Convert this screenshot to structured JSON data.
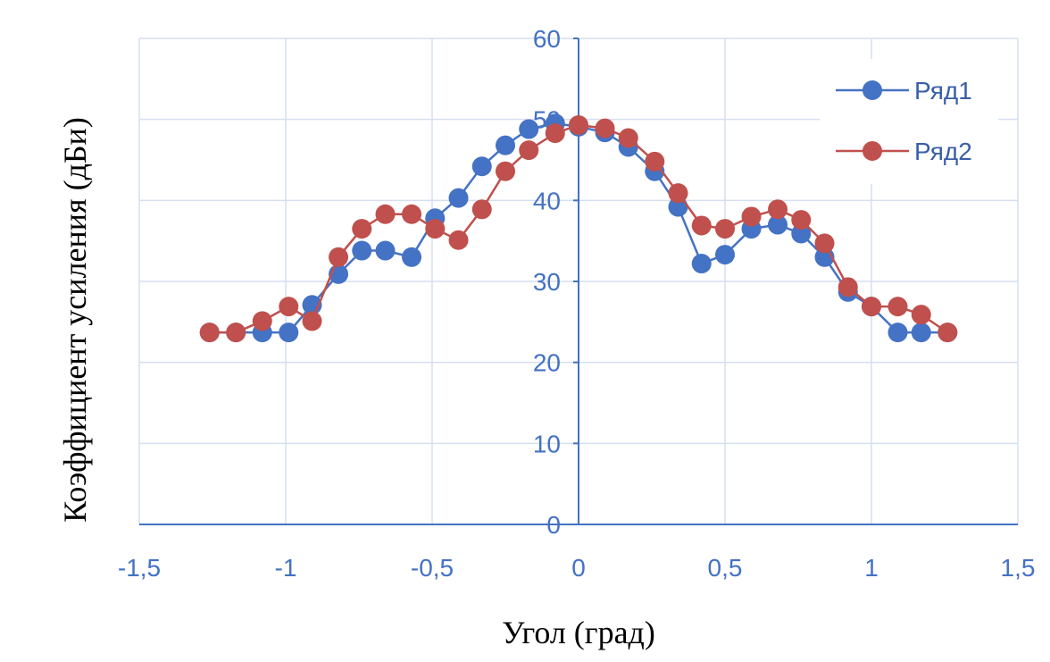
{
  "chart_data": {
    "type": "line",
    "title": "",
    "xlabel": "Угол (град)",
    "ylabel": "Коэффициент  усиления  (дБи)",
    "xlim": [
      -1.5,
      1.5
    ],
    "ylim": [
      0,
      60
    ],
    "x_ticks": [
      "-1,5",
      "-1",
      "-0,5",
      "0",
      "0,5",
      "1",
      "1,5"
    ],
    "y_ticks": [
      "0",
      "10",
      "20",
      "30",
      "40",
      "50",
      "60"
    ],
    "grid": true,
    "legend_position": "top-right",
    "series": [
      {
        "name": "Ряд1",
        "color": "#4472c4",
        "x": [
          -1.26,
          -1.17,
          -1.08,
          -0.99,
          -0.91,
          -0.82,
          -0.74,
          -0.66,
          -0.57,
          -0.49,
          -0.41,
          -0.33,
          -0.25,
          -0.17,
          -0.08,
          0.0,
          0.09,
          0.17,
          0.26,
          0.34,
          0.42,
          0.5,
          0.59,
          0.68,
          0.76,
          0.84,
          0.92,
          1.0,
          1.09,
          1.17,
          1.26
        ],
        "y": [
          23.7,
          23.7,
          23.7,
          23.7,
          27.1,
          30.9,
          33.8,
          33.8,
          33.0,
          37.8,
          40.3,
          44.2,
          46.8,
          48.8,
          49.5,
          49.1,
          48.4,
          46.6,
          43.6,
          39.2,
          32.2,
          33.3,
          36.5,
          37.0,
          35.9,
          33.0,
          28.7,
          26.9,
          23.7,
          23.7,
          23.7
        ]
      },
      {
        "name": "Ряд2",
        "color": "#c0504d",
        "x": [
          -1.26,
          -1.17,
          -1.08,
          -0.99,
          -0.91,
          -0.82,
          -0.74,
          -0.66,
          -0.57,
          -0.49,
          -0.41,
          -0.33,
          -0.25,
          -0.17,
          -0.08,
          0.0,
          0.09,
          0.17,
          0.26,
          0.34,
          0.42,
          0.5,
          0.59,
          0.68,
          0.76,
          0.84,
          0.92,
          1.0,
          1.09,
          1.17,
          1.26
        ],
        "y": [
          23.7,
          23.7,
          25.1,
          26.9,
          25.1,
          33.0,
          36.5,
          38.3,
          38.3,
          36.5,
          35.1,
          38.9,
          43.6,
          46.2,
          48.3,
          49.3,
          48.9,
          47.7,
          44.8,
          40.9,
          36.9,
          36.5,
          38.0,
          38.9,
          37.6,
          34.7,
          29.3,
          26.9,
          26.9,
          25.9,
          23.7
        ]
      }
    ]
  }
}
